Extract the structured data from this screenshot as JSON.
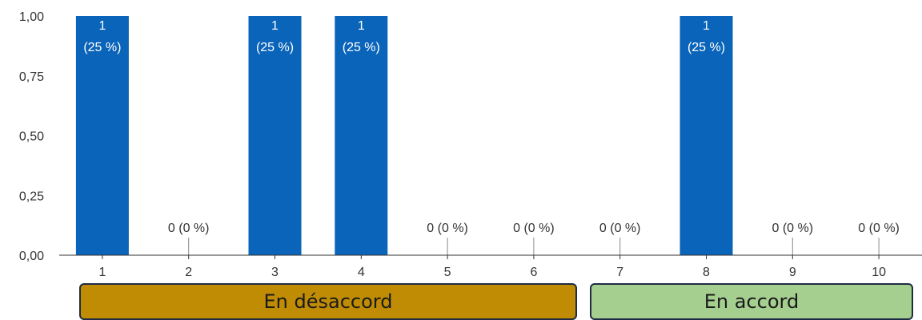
{
  "chart_data": {
    "type": "bar",
    "categories": [
      "1",
      "2",
      "3",
      "4",
      "5",
      "6",
      "7",
      "8",
      "9",
      "10"
    ],
    "values": [
      1,
      0,
      1,
      1,
      0,
      0,
      0,
      1,
      0,
      0
    ],
    "value_labels": [
      "1 (25 %)",
      "0 (0 %)",
      "1 (25 %)",
      "1 (25 %)",
      "0 (0 %)",
      "0 (0 %)",
      "0 (0 %)",
      "1 (25 %)",
      "0 (0 %)",
      "0 (0 %)"
    ],
    "ylim": [
      0,
      1
    ],
    "yticks": [
      "0,00",
      "0,25",
      "0,50",
      "0,75",
      "1,00"
    ],
    "bar_color": "#0a64b9",
    "grid": false
  },
  "legend": {
    "disagree": {
      "label": "En désaccord",
      "color": "#bf8c04"
    },
    "agree": {
      "label": "En accord",
      "color": "#a5cf8f"
    }
  }
}
